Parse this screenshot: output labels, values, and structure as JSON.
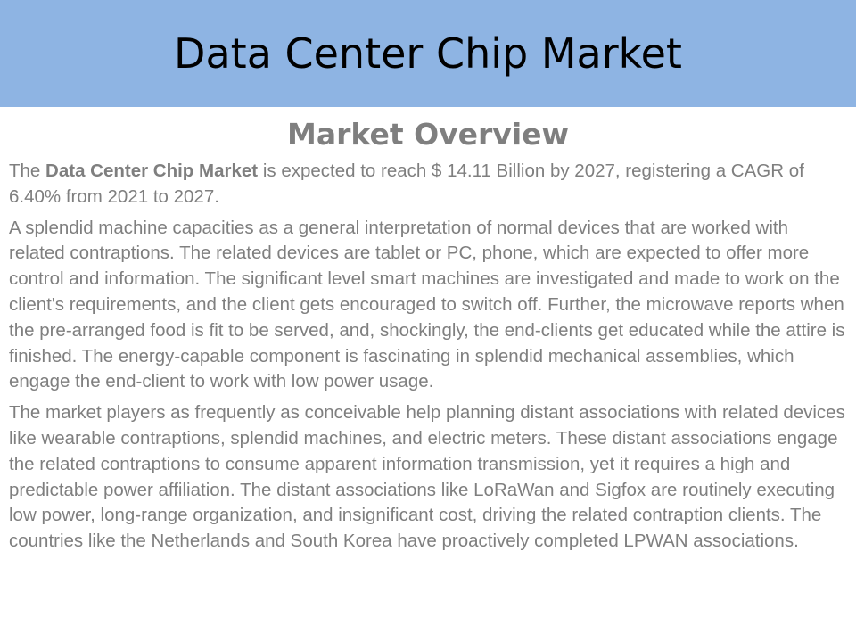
{
  "slide": {
    "title": "Data Center Chip Market",
    "section_heading": "Market Overview",
    "intro": {
      "prefix": "The ",
      "highlight": "Data Center Chip Market",
      "suffix": " is expected to reach $ 14.11 Billion by 2027, registering a CAGR of 6.40% from 2021 to 2027."
    },
    "paragraphs": [
      "A splendid machine capacities as a general interpretation of normal devices that are worked with related contraptions. The related devices are tablet or PC, phone, which are expected to offer more control and information. The significant level smart machines are investigated and made to work on the client's requirements, and the client gets encouraged to switch off. Further, the microwave reports when the pre-arranged food is fit to be served, and, shockingly, the end-clients get educated while the attire is finished. The energy-capable component is fascinating in splendid mechanical assemblies, which engage the end-client to work with low power usage.",
      "The market players as frequently as conceivable help planning distant associations with related devices like wearable contraptions, splendid machines, and electric meters. These distant associations engage the related contraptions to consume apparent information transmission, yet it requires a high and predictable power affiliation. The distant associations like LoRaWan and Sigfox are routinely executing low power, long-range organization, and insignificant cost, driving the related contraption clients. The countries like the Netherlands and South Korea have proactively completed LPWAN associations."
    ]
  },
  "colors": {
    "title_bar": "#8eb4e3",
    "body_text": "#7f7f7f",
    "title_text": "#000000"
  }
}
